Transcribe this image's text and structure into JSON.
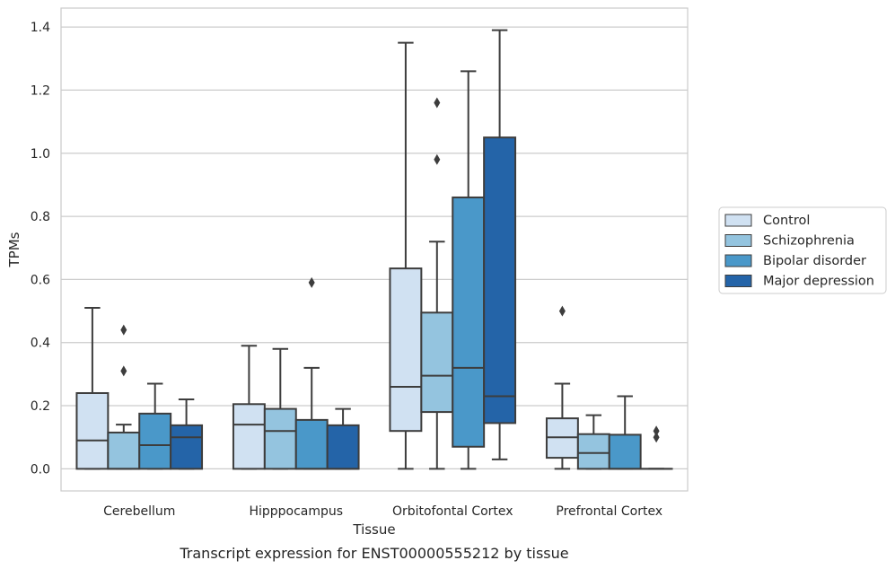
{
  "caption": "Transcript expression for ENST00000555212 by tissue",
  "chart_data": {
    "type": "box",
    "xlabel": "Tissue",
    "ylabel": "TPMs",
    "categories": [
      "Cerebellum",
      "Hipppocampus",
      "Orbitofontal Cortex",
      "Prefrontal Cortex"
    ],
    "ylim": [
      -0.07,
      1.46
    ],
    "yticks": [
      "0.0",
      "0.2",
      "0.4",
      "0.6",
      "0.8",
      "1.0",
      "1.2",
      "1.4"
    ],
    "ytick_values": [
      0,
      0.2,
      0.4,
      0.6,
      0.8,
      1.0,
      1.2,
      1.4
    ],
    "grid": "horizontal",
    "legend_position": "right",
    "series": [
      {
        "name": "Control",
        "color": "#d0e1f2",
        "boxes": [
          {
            "min": 0.0,
            "q1": 0.0,
            "median": 0.09,
            "q3": 0.24,
            "max": 0.51,
            "outliers": []
          },
          {
            "min": 0.0,
            "q1": 0.0,
            "median": 0.14,
            "q3": 0.205,
            "max": 0.39,
            "outliers": []
          },
          {
            "min": 0.0,
            "q1": 0.12,
            "median": 0.26,
            "q3": 0.635,
            "max": 1.35,
            "outliers": []
          },
          {
            "min": 0.0,
            "q1": 0.035,
            "median": 0.1,
            "q3": 0.16,
            "max": 0.27,
            "outliers": [
              0.5
            ]
          }
        ]
      },
      {
        "name": "Schizophrenia",
        "color": "#94c4df",
        "boxes": [
          {
            "min": 0.0,
            "q1": 0.0,
            "median": 0.0,
            "q3": 0.115,
            "max": 0.14,
            "outliers": [
              0.31,
              0.44
            ]
          },
          {
            "min": 0.0,
            "q1": 0.0,
            "median": 0.12,
            "q3": 0.19,
            "max": 0.38,
            "outliers": []
          },
          {
            "min": 0.0,
            "q1": 0.18,
            "median": 0.295,
            "q3": 0.495,
            "max": 0.72,
            "outliers": [
              0.98,
              1.16
            ]
          },
          {
            "min": 0.0,
            "q1": 0.0,
            "median": 0.05,
            "q3": 0.11,
            "max": 0.17,
            "outliers": []
          }
        ]
      },
      {
        "name": "Bipolar disorder",
        "color": "#4a98c9",
        "boxes": [
          {
            "min": 0.0,
            "q1": 0.0,
            "median": 0.075,
            "q3": 0.175,
            "max": 0.27,
            "outliers": []
          },
          {
            "min": 0.0,
            "q1": 0.0,
            "median": 0.0,
            "q3": 0.155,
            "max": 0.32,
            "outliers": [
              0.59
            ]
          },
          {
            "min": 0.0,
            "q1": 0.07,
            "median": 0.32,
            "q3": 0.86,
            "max": 1.26,
            "outliers": []
          },
          {
            "min": 0.0,
            "q1": 0.0,
            "median": 0.0,
            "q3": 0.108,
            "max": 0.23,
            "outliers": []
          }
        ]
      },
      {
        "name": "Major depression",
        "color": "#2464a8",
        "boxes": [
          {
            "min": 0.0,
            "q1": 0.0,
            "median": 0.1,
            "q3": 0.138,
            "max": 0.22,
            "outliers": []
          },
          {
            "min": 0.0,
            "q1": 0.0,
            "median": 0.0,
            "q3": 0.138,
            "max": 0.19,
            "outliers": []
          },
          {
            "min": 0.03,
            "q1": 0.145,
            "median": 0.23,
            "q3": 1.05,
            "max": 1.39,
            "outliers": []
          },
          {
            "min": 0.0,
            "q1": 0.0,
            "median": 0.0,
            "q3": 0.0,
            "max": 0.0,
            "outliers": [
              0.1,
              0.12
            ]
          }
        ]
      }
    ]
  }
}
